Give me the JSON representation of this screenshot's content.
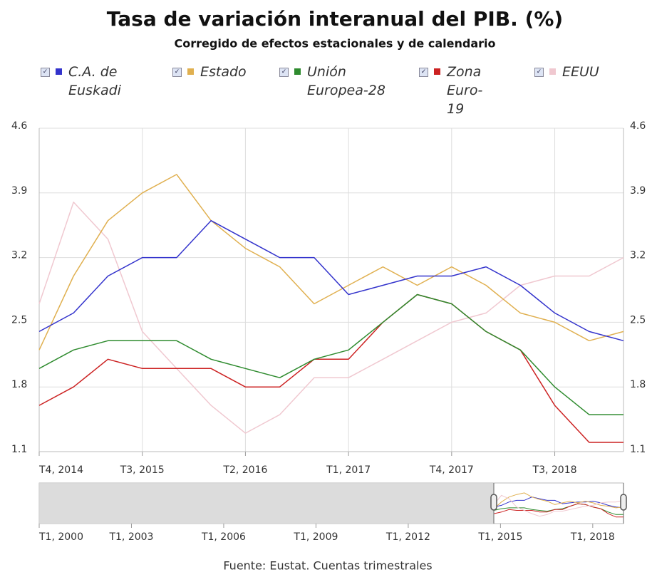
{
  "chart_data": {
    "type": "line",
    "title": "Tasa de variación interanual del PIB. (%)",
    "subtitle": "Corregido de efectos estacionales y de calendario",
    "categories": [
      "T4, 2014",
      null,
      null,
      "T3, 2015",
      null,
      null,
      "T2, 2016",
      null,
      null,
      "T1, 2017",
      null,
      null,
      "T4, 2017",
      null,
      null,
      "T3, 2018",
      null,
      null
    ],
    "series": [
      {
        "name": "C.A. de Euskadi",
        "color": "#3333cc",
        "values": [
          2.4,
          2.6,
          3.0,
          3.2,
          3.2,
          3.6,
          3.4,
          3.2,
          3.2,
          2.8,
          2.9,
          3.0,
          3.0,
          3.1,
          2.9,
          2.6,
          2.4,
          2.3
        ]
      },
      {
        "name": "Estado",
        "color": "#e0b050",
        "values": [
          2.2,
          3.0,
          3.6,
          3.9,
          4.1,
          3.6,
          3.3,
          3.1,
          2.7,
          2.9,
          3.1,
          2.9,
          3.1,
          2.9,
          2.6,
          2.5,
          2.3,
          2.4
        ]
      },
      {
        "name": "Unión Europea-28",
        "color": "#2e8b2e",
        "values": [
          2.0,
          2.2,
          2.3,
          2.3,
          2.3,
          2.1,
          2.0,
          1.9,
          2.1,
          2.2,
          2.5,
          2.8,
          2.7,
          2.4,
          2.2,
          1.8,
          1.5,
          1.5
        ]
      },
      {
        "name": "Zona Euro-19",
        "color": "#cc2222",
        "values": [
          1.6,
          1.8,
          2.1,
          2.0,
          2.0,
          2.0,
          1.8,
          1.8,
          2.1,
          2.1,
          2.5,
          2.8,
          2.7,
          2.4,
          2.2,
          1.6,
          1.2,
          1.2
        ]
      },
      {
        "name": "EEUU",
        "color": "#f0c8d0",
        "values": [
          2.7,
          3.8,
          3.4,
          2.4,
          2.0,
          1.6,
          1.3,
          1.5,
          1.9,
          1.9,
          2.1,
          2.3,
          2.5,
          2.6,
          2.9,
          3.0,
          3.0,
          3.2
        ]
      }
    ],
    "ylim": [
      1.1,
      4.6
    ],
    "yticks": [
      1.1,
      1.8,
      2.5,
      3.2,
      3.9,
      4.6
    ],
    "grid": true,
    "navigator": {
      "xticks": [
        "T1, 2000",
        "T1, 2003",
        "T1, 2006",
        "T1, 2009",
        "T1, 2012",
        "T1, 2015",
        "T1, 2018"
      ]
    },
    "source": "Fuente: Eustat. Cuentas trimestrales"
  }
}
